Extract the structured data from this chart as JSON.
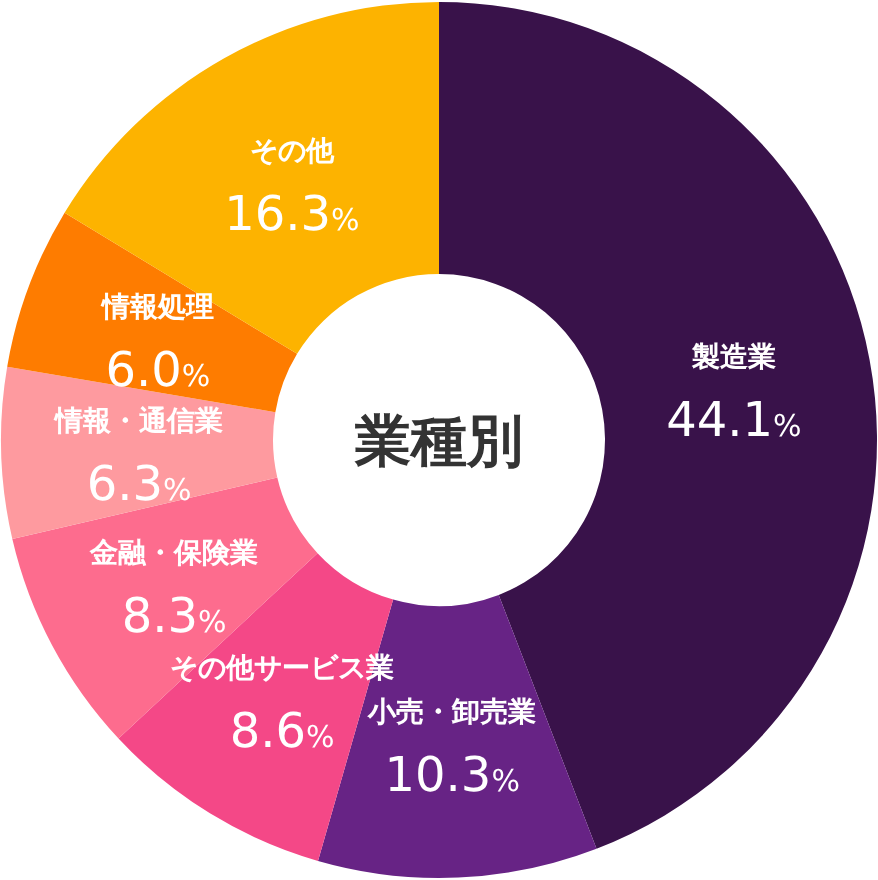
{
  "chart_data": {
    "type": "donut",
    "title": "業種別",
    "categories": [
      "製造業",
      "小売・卸売業",
      "その他サービス業",
      "金融・保険業",
      "情報・通信業",
      "情報処理",
      "その他"
    ],
    "values": [
      44.1,
      10.3,
      8.6,
      8.3,
      6.3,
      6.0,
      16.3
    ],
    "value_labels": [
      "44.1%",
      "10.3%",
      "8.6%",
      "8.3%",
      "6.3%",
      "6.0%",
      "16.3%"
    ],
    "colors": [
      "#39124a",
      "#672385",
      "#f44887",
      "#fd6c8e",
      "#fe9a9f",
      "#fe7c00",
      "#fdb300"
    ]
  }
}
